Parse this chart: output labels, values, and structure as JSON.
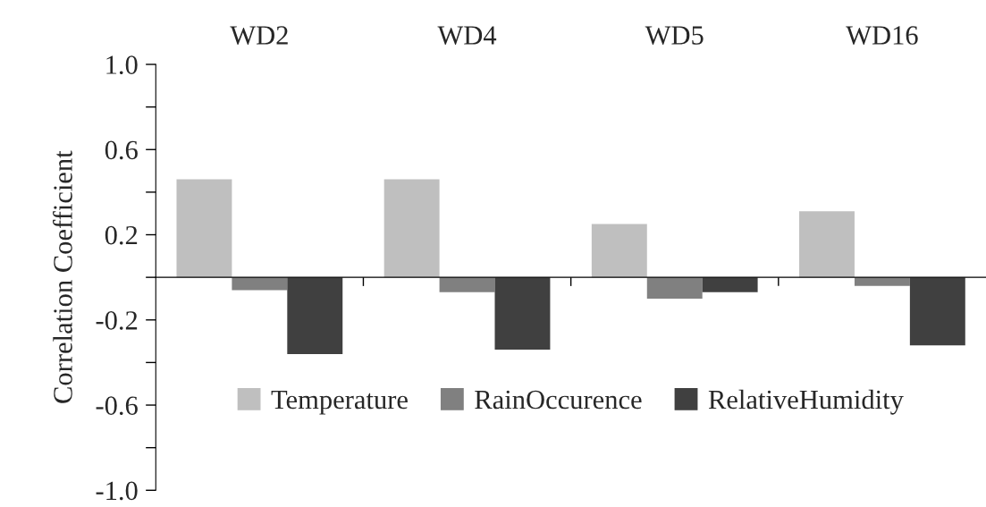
{
  "chart_data": {
    "type": "bar",
    "categories": [
      "WD2",
      "WD4",
      "WD5",
      "WD16"
    ],
    "ylabel": "Correlation Coefficient",
    "series": [
      {
        "name": "Temperature",
        "color": "#bfbfbf",
        "values": [
          0.46,
          0.46,
          0.25,
          0.31
        ]
      },
      {
        "name": "RainOccurence",
        "color": "#808080",
        "values": [
          -0.06,
          -0.07,
          -0.1,
          -0.04
        ]
      },
      {
        "name": "RelativeHumidity",
        "color": "#404040",
        "values": [
          -0.36,
          -0.34,
          -0.07,
          -0.32
        ]
      }
    ],
    "ylim": [
      -1.0,
      1.0
    ],
    "yticks": [
      {
        "value": -1.0,
        "label": "-1.0"
      },
      {
        "value": -0.8,
        "label": null
      },
      {
        "value": -0.6,
        "label": "-0.6"
      },
      {
        "value": -0.4,
        "label": null
      },
      {
        "value": -0.2,
        "label": "-0.2"
      },
      {
        "value": 0.0,
        "label": null
      },
      {
        "value": 0.2,
        "label": "0.2"
      },
      {
        "value": 0.4,
        "label": null
      },
      {
        "value": 0.6,
        "label": "0.6"
      },
      {
        "value": 0.8,
        "label": null
      },
      {
        "value": 1.0,
        "label": "1.0"
      }
    ],
    "legend": "bottom"
  }
}
